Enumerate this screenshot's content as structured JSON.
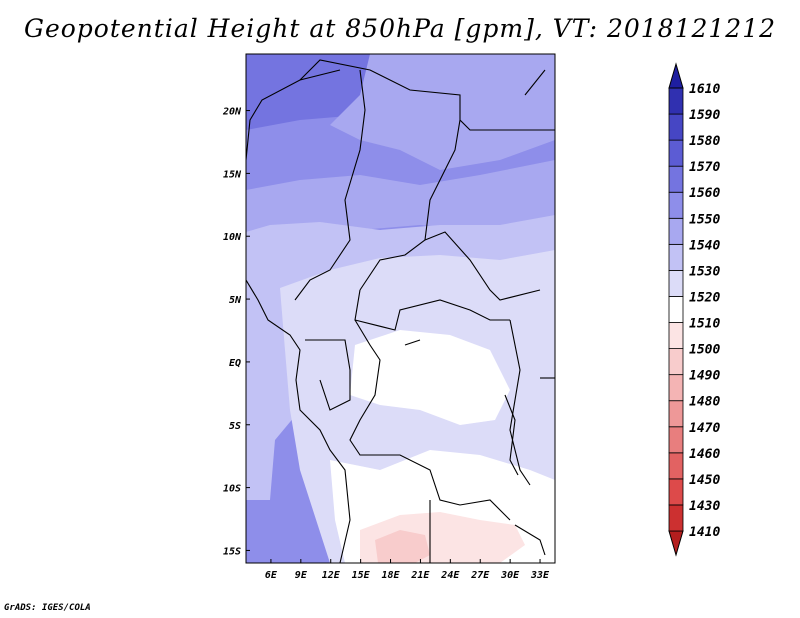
{
  "title": "Geopotential Height at 850hPa [gpm], VT: 2018121212",
  "credit": "GrADS: IGES/COLA",
  "map": {
    "lon_ticks": [
      "6E",
      "9E",
      "12E",
      "15E",
      "18E",
      "21E",
      "24E",
      "27E",
      "30E",
      "33E"
    ],
    "lat_ticks": [
      "20N",
      "15N",
      "10N",
      "5N",
      "EQ",
      "5S",
      "10S",
      "15S"
    ],
    "lon_range": [
      3.5,
      34.5
    ],
    "lat_range": [
      -16,
      24.5
    ]
  },
  "colorbar": {
    "levels": [
      "1410",
      "1430",
      "1450",
      "1460",
      "1470",
      "1480",
      "1490",
      "1500",
      "1510",
      "1520",
      "1530",
      "1540",
      "1550",
      "1560",
      "1570",
      "1580",
      "1590",
      "1610"
    ],
    "colors": [
      "#b41e1e",
      "#cc3030",
      "#dd4a4a",
      "#e26262",
      "#e87e7e",
      "#ee9898",
      "#f4b4b4",
      "#f8cccc",
      "#fce4e4",
      "#ffffff",
      "#dcdcf8",
      "#c2c2f5",
      "#a8a8f0",
      "#8e8eea",
      "#7474e0",
      "#5c5cd4",
      "#4646c4",
      "#3030b0",
      "#1e1ea0"
    ]
  },
  "field_colors": {
    "c1570": "#7474e0",
    "c1560": "#8e8eea",
    "c1550": "#a8a8f0",
    "c1540": "#c2c2f5",
    "c1530": "#dcdcf8",
    "c1520": "#ffffff",
    "c1510": "#fce4e4",
    "c1500": "#f8cccc"
  }
}
